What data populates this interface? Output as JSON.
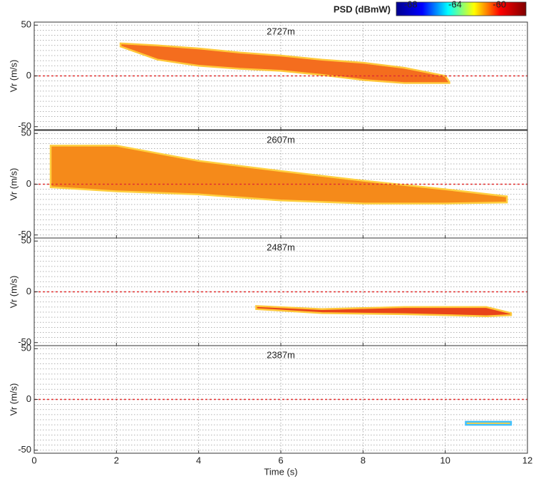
{
  "colorbar": {
    "label": "PSD (dBmW)",
    "lim": [
      -69.3,
      -57.6
    ],
    "ticks": [
      -68,
      -64,
      -60
    ],
    "colors": [
      "#00008f",
      "#0000ff",
      "#00ffff",
      "#ffff00",
      "#ff0000",
      "#800000"
    ]
  },
  "chart_data": [
    {
      "type": "range",
      "title": "2727m",
      "ylabel": "Vr (m/s)",
      "xlim": [
        0,
        12
      ],
      "xticks": [
        0,
        2,
        4,
        6,
        8,
        10,
        12
      ],
      "ylim": [
        -53,
        53
      ],
      "yticks": [
        -50,
        0,
        50
      ],
      "ygrid": [
        -45,
        -40,
        -35,
        -30,
        -25,
        -20,
        -15,
        -10,
        -5,
        5,
        10,
        15,
        20,
        25,
        30,
        35,
        40,
        45
      ],
      "grid": true,
      "ref_line": {
        "value": 0,
        "color": "#e03030"
      },
      "series": [
        {
          "color": "#f46d1e",
          "edge_color": "#ffc83a",
          "x": [
            2.1,
            3,
            4,
            5,
            6,
            7,
            8,
            9,
            10,
            10.1
          ],
          "upper": [
            32,
            30,
            27,
            23,
            20,
            16,
            13,
            8,
            0,
            -6
          ],
          "lower": [
            29,
            16,
            10,
            7,
            5,
            1,
            -4,
            -7,
            -7,
            -7
          ]
        }
      ]
    },
    {
      "type": "range",
      "title": "2607m",
      "ylabel": "Vr (m/s)",
      "xlim": [
        0,
        12
      ],
      "xticks": [
        0,
        2,
        4,
        6,
        8,
        10,
        12
      ],
      "ylim": [
        -53,
        53
      ],
      "yticks": [
        -50,
        0,
        50
      ],
      "ygrid": [
        -45,
        -40,
        -35,
        -30,
        -25,
        -20,
        -15,
        -10,
        -5,
        5,
        10,
        15,
        20,
        25,
        30,
        35,
        40,
        45
      ],
      "grid": true,
      "ref_line": {
        "value": 0,
        "color": "#e03030"
      },
      "series": [
        {
          "color": "#f58a1a",
          "edge_color": "#ffd040",
          "x": [
            0.4,
            2,
            4,
            6,
            8,
            10,
            11.5
          ],
          "upper": [
            38,
            38,
            23,
            13,
            3.5,
            -5,
            -12
          ],
          "lower": [
            -3,
            -7,
            -10,
            -16,
            -19,
            -19,
            -18
          ]
        }
      ]
    },
    {
      "type": "range",
      "title": "2487m",
      "ylabel": "Vr (m/s)",
      "xlim": [
        0,
        12
      ],
      "xticks": [
        0,
        2,
        4,
        6,
        8,
        10,
        12
      ],
      "ylim": [
        -53,
        53
      ],
      "yticks": [
        -50,
        0,
        50
      ],
      "ygrid": [
        -45,
        -40,
        -35,
        -30,
        -25,
        -20,
        -15,
        -10,
        -5,
        5,
        10,
        15,
        20,
        25,
        30,
        35,
        40,
        45
      ],
      "grid": true,
      "ref_line": {
        "value": 0,
        "color": "#e03030"
      },
      "series": [
        {
          "color": "#e8441a",
          "edge_color": "#ffc83a",
          "x": [
            5.4,
            7,
            9,
            11,
            11.6
          ],
          "upper": [
            -14,
            -17,
            -15,
            -15,
            -21
          ],
          "lower": [
            -17,
            -21,
            -22,
            -24,
            -23
          ]
        }
      ]
    },
    {
      "type": "range",
      "title": "2387m",
      "ylabel": "Vr (m/s)",
      "xlabel": "Time (s)",
      "xlim": [
        0,
        12
      ],
      "xticks": [
        0,
        2,
        4,
        6,
        8,
        10,
        12
      ],
      "ylim": [
        -53,
        53
      ],
      "yticks": [
        -50,
        0,
        50
      ],
      "ygrid": [
        -45,
        -40,
        -35,
        -30,
        -25,
        -20,
        -15,
        -10,
        -5,
        5,
        10,
        15,
        20,
        25,
        30,
        35,
        40,
        45
      ],
      "grid": true,
      "ref_line": {
        "value": 0,
        "color": "#e03030"
      },
      "series": [
        {
          "color": "#ffd040",
          "edge_color": "#40c0ff",
          "x": [
            10.5,
            11.6
          ],
          "upper": [
            -22,
            -22
          ],
          "lower": [
            -25,
            -25
          ]
        }
      ]
    }
  ]
}
